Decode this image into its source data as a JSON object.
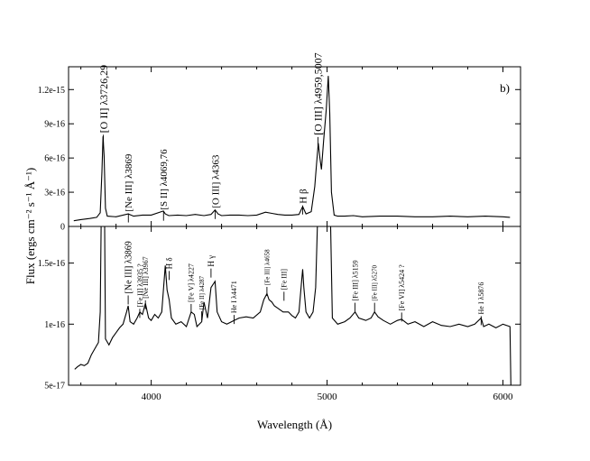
{
  "chart_data": {
    "type": "line",
    "xlabel": "Wavelength (Å)",
    "ylabel": "Flux (ergs cm⁻² s⁻¹ Å⁻¹)",
    "x_range": [
      3530,
      6100
    ],
    "x_ticks": [
      4000,
      5000,
      6000
    ],
    "x_tick_labels": [
      "4000",
      "5000",
      "6000"
    ],
    "panels": [
      {
        "name": "top",
        "panel_label": "b)",
        "ylim": [
          0,
          1.4e-15
        ],
        "y_ticks": [
          0,
          3e-16,
          6e-16,
          9e-16,
          1.2e-15
        ],
        "y_tick_labels": [
          "0",
          "3e-16",
          "6e-16",
          "9e-16",
          "1.2e-15"
        ],
        "x": [
          3560,
          3600,
          3650,
          3690,
          3710,
          3720,
          3726,
          3732,
          3740,
          3750,
          3800,
          3869,
          3900,
          3950,
          4000,
          4069,
          4080,
          4100,
          4150,
          4200,
          4250,
          4300,
          4340,
          4363,
          4380,
          4400,
          4450,
          4500,
          4550,
          4600,
          4650,
          4686,
          4720,
          4760,
          4800,
          4840,
          4861,
          4880,
          4910,
          4930,
          4940,
          4950,
          4959,
          4968,
          4980,
          4995,
          5000,
          5007,
          5015,
          5025,
          5040,
          5060,
          5100,
          5150,
          5200,
          5300,
          5400,
          5500,
          5600,
          5700,
          5800,
          5900,
          6000,
          6040
        ],
        "y": [
          5e-17,
          6e-17,
          7e-17,
          8e-17,
          1.2e-16,
          4.8e-16,
          7.9e-16,
          6.2e-16,
          1.6e-16,
          9e-17,
          8.5e-17,
          1.1e-16,
          9e-17,
          1e-16,
          1e-16,
          1.35e-16,
          1.1e-16,
          9.5e-17,
          1e-16,
          9.5e-17,
          1.05e-16,
          9.5e-17,
          1.05e-16,
          1.45e-16,
          1.1e-16,
          9.5e-17,
          1e-16,
          1e-16,
          9.5e-17,
          1e-16,
          1.25e-16,
          1.15e-16,
          1.05e-16,
          1e-16,
          1e-16,
          1.05e-16,
          1.75e-16,
          1.1e-16,
          1.3e-16,
          3.5e-16,
          5.5e-16,
          7.3e-16,
          6e-16,
          5e-16,
          7.5e-16,
          1.02e-15,
          1.15e-15,
          1.32e-15,
          1e-15,
          3e-16,
          1e-16,
          9e-17,
          9e-17,
          9.5e-17,
          8.5e-17,
          9e-17,
          9e-17,
          8.5e-17,
          8.5e-17,
          9e-17,
          8.5e-17,
          9e-17,
          8.5e-17,
          8e-17
        ]
      },
      {
        "name": "bottom",
        "ylim": [
          5e-17,
          1.8e-16
        ],
        "y_ticks": [
          5e-17,
          1e-16,
          1.5e-16
        ],
        "y_tick_labels": [
          "5e-17",
          "1e-16",
          "1.5e-16"
        ],
        "x": [
          3565,
          3580,
          3600,
          3620,
          3640,
          3660,
          3680,
          3700,
          3710,
          3715,
          3720,
          3735,
          3740,
          3760,
          3780,
          3800,
          3820,
          3840,
          3860,
          3869,
          3880,
          3900,
          3920,
          3935,
          3950,
          3967,
          3985,
          4000,
          4020,
          4040,
          4060,
          4080,
          4090,
          4102,
          4115,
          4140,
          4170,
          4200,
          4227,
          4245,
          4260,
          4287,
          4300,
          4320,
          4340,
          4363,
          4375,
          4400,
          4430,
          4471,
          4500,
          4540,
          4580,
          4620,
          4640,
          4658,
          4670,
          4686,
          4700,
          4720,
          4750,
          4780,
          4800,
          4820,
          4840,
          4855,
          4861,
          4868,
          4880,
          4900,
          4920,
          4935,
          4945,
          5020,
          5030,
          5060,
          5100,
          5130,
          5159,
          5180,
          5220,
          5250,
          5270,
          5290,
          5320,
          5360,
          5400,
          5424,
          5460,
          5500,
          5550,
          5600,
          5650,
          5700,
          5750,
          5800,
          5840,
          5876,
          5890,
          5920,
          5960,
          6000,
          6040,
          6045
        ],
        "y": [
          6.3e-17,
          6.5e-17,
          6.7e-17,
          6.6e-17,
          6.8e-17,
          7.5e-17,
          8e-17,
          8.5e-17,
          1.1e-16,
          1.8e-16,
          1.8e-16,
          1.8e-16,
          8.8e-17,
          8.3e-17,
          8.9e-17,
          9.3e-17,
          9.7e-17,
          1e-16,
          1.1e-16,
          1.15e-16,
          1.02e-16,
          1e-16,
          1.05e-16,
          1.1e-16,
          1.08e-16,
          1.17e-16,
          1.05e-16,
          1.03e-16,
          1.08e-16,
          1.05e-16,
          1.1e-16,
          1.48e-16,
          1.28e-16,
          1.2e-16,
          1.05e-16,
          1e-16,
          1.02e-16,
          9.8e-17,
          1.1e-16,
          1.08e-16,
          9.8e-17,
          1.02e-16,
          1.18e-16,
          1.05e-16,
          1.3e-16,
          1.35e-16,
          1.1e-16,
          1.02e-16,
          1e-16,
          1.03e-16,
          1.05e-16,
          1.06e-16,
          1.05e-16,
          1.1e-16,
          1.2e-16,
          1.25e-16,
          1.2e-16,
          1.18e-16,
          1.15e-16,
          1.13e-16,
          1.1e-16,
          1.1e-16,
          1.07e-16,
          1.05e-16,
          1.1e-16,
          1.35e-16,
          1.45e-16,
          1.3e-16,
          1.1e-16,
          1.05e-16,
          1.1e-16,
          1.3e-16,
          1.8e-16,
          1.8e-16,
          1.05e-16,
          1e-16,
          1.02e-16,
          1.05e-16,
          1.1e-16,
          1.05e-16,
          1.03e-16,
          1.05e-16,
          1.1e-16,
          1.06e-16,
          1.03e-16,
          1e-16,
          1.03e-16,
          1.04e-16,
          1e-16,
          1.02e-16,
          9.8e-17,
          1.02e-16,
          9.9e-17,
          9.8e-17,
          1e-16,
          9.8e-17,
          1e-16,
          1.05e-16,
          9.8e-17,
          1e-16,
          9.7e-17,
          1e-16,
          9.8e-17,
          5e-17
        ]
      }
    ],
    "annotations": [
      {
        "panel": "top",
        "text": "[O II] λ3726,29",
        "x": 3728,
        "y": 8.2e-16,
        "size": 12
      },
      {
        "panel": "top",
        "text": "[Ne III] λ3869",
        "x": 3870,
        "y": 1.3e-16,
        "size": 11
      },
      {
        "panel": "top",
        "text": "[S II] λ4069,76",
        "x": 4070,
        "y": 1.45e-16,
        "size": 11
      },
      {
        "panel": "top",
        "text": "[O III] λ4363",
        "x": 4364,
        "y": 1.6e-16,
        "size": 11
      },
      {
        "panel": "top",
        "text": "H β",
        "x": 4861,
        "y": 2e-16,
        "size": 11
      },
      {
        "panel": "top",
        "text": "[O III] λ4959,5007",
        "x": 4948,
        "y": 8e-16,
        "size": 12
      },
      {
        "panel": "bottom",
        "text": "[Ne III] λ3869",
        "x": 3869,
        "y": 1.25e-16,
        "size": 10
      },
      {
        "panel": "bottom",
        "text": "[Fe II] λ3935 ?",
        "x": 3935,
        "y": 1.14e-16,
        "size": 8
      },
      {
        "panel": "bottom",
        "text": "[Ne III] λ3967",
        "x": 3967,
        "y": 1.21e-16,
        "size": 8
      },
      {
        "panel": "bottom",
        "text": "H δ",
        "x": 4102,
        "y": 1.45e-16,
        "size": 9
      },
      {
        "panel": "bottom",
        "text": "[Fe V] λ4227",
        "x": 4227,
        "y": 1.18e-16,
        "size": 8
      },
      {
        "panel": "bottom",
        "text": "[Fe II] λ4287",
        "x": 4287,
        "y": 1.12e-16,
        "size": 7
      },
      {
        "panel": "bottom",
        "text": "H γ",
        "x": 4340,
        "y": 1.47e-16,
        "size": 9
      },
      {
        "panel": "bottom",
        "text": "He I λ4471",
        "x": 4471,
        "y": 1.09e-16,
        "size": 8
      },
      {
        "panel": "bottom",
        "text": "[Fe III] λ4658",
        "x": 4658,
        "y": 1.32e-16,
        "size": 7
      },
      {
        "panel": "bottom",
        "text": "[Fe III]",
        "x": 4755,
        "y": 1.28e-16,
        "size": 8
      },
      {
        "panel": "bottom",
        "text": "[Fe III] λ5159",
        "x": 5159,
        "y": 1.19e-16,
        "size": 8
      },
      {
        "panel": "bottom",
        "text": "[Fe III] λ5270",
        "x": 5270,
        "y": 1.19e-16,
        "size": 7
      },
      {
        "panel": "bottom",
        "text": "[Fe VI] λ5424 ?",
        "x": 5424,
        "y": 1.11e-16,
        "size": 8
      },
      {
        "panel": "bottom",
        "text": "He I λ5876",
        "x": 5876,
        "y": 1.08e-16,
        "size": 8
      }
    ]
  }
}
